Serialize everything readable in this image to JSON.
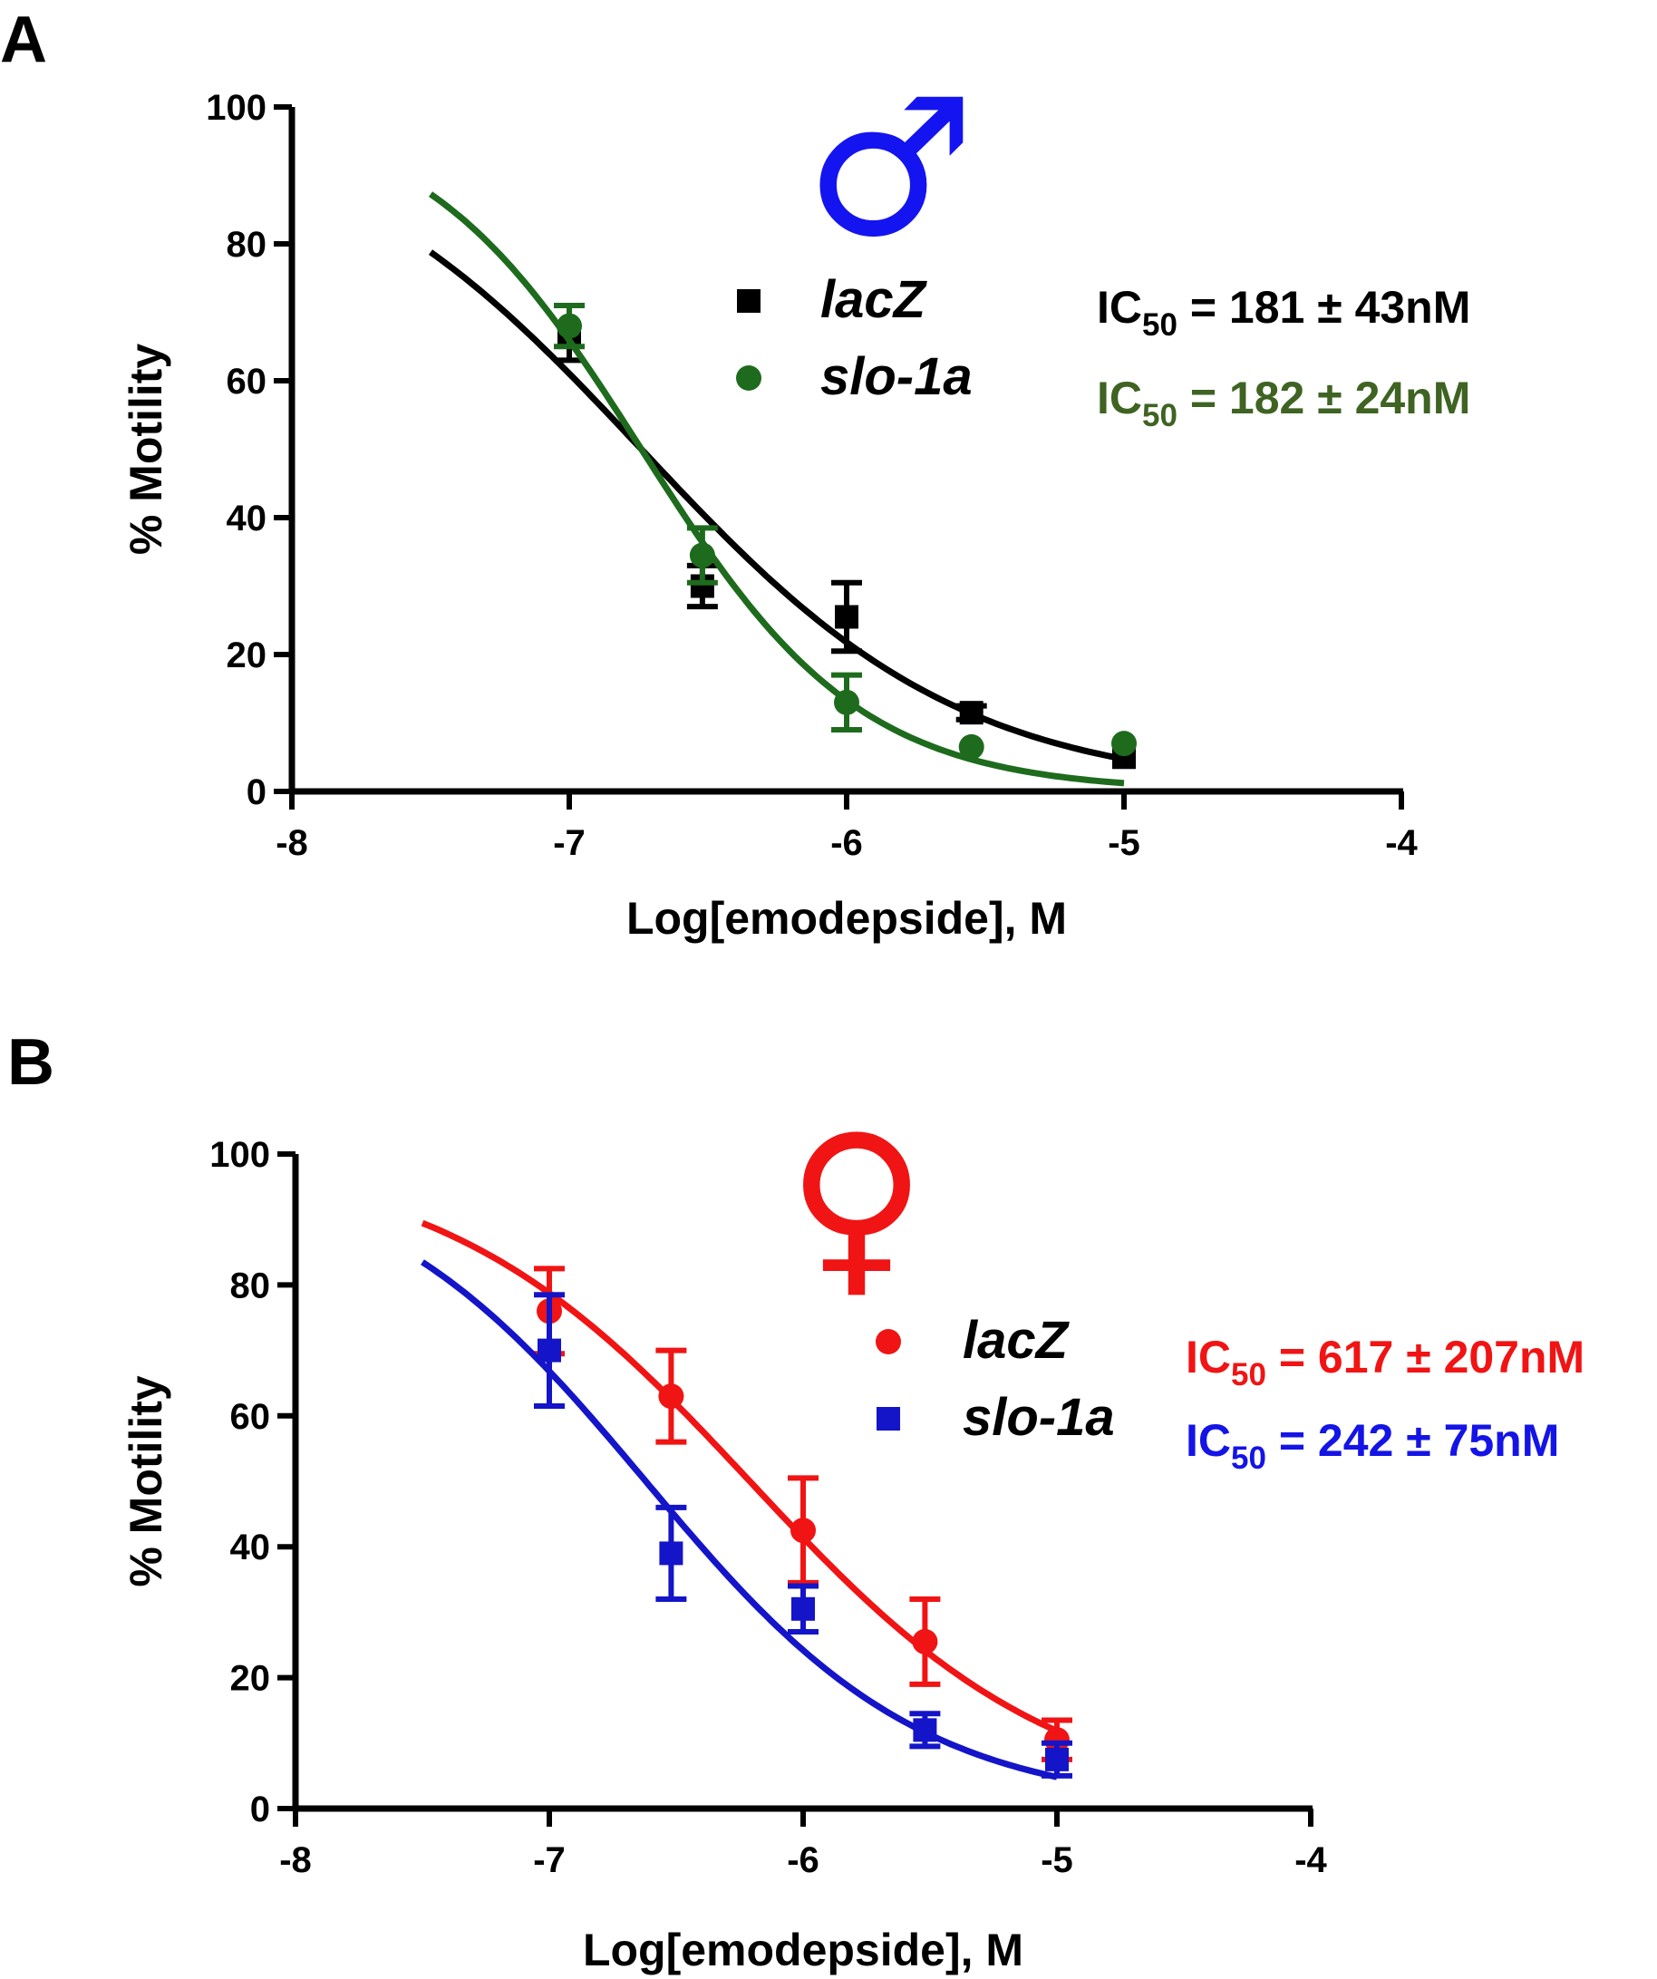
{
  "chart_data": [
    {
      "panel_label": "A",
      "type": "scatter",
      "symbol_glyph": "♂",
      "symbol_color": "#1414f0",
      "xlabel": "Log[emodepside], M",
      "ylabel": "% Motility",
      "xlim": [
        -8,
        -4
      ],
      "ylim": [
        0,
        100
      ],
      "xticks": [
        -8,
        -7,
        -6,
        -5,
        -4
      ],
      "yticks": [
        0,
        20,
        40,
        60,
        80,
        100
      ],
      "xtick_labels": [
        "-8",
        "-7",
        "-6",
        "-5",
        "-4"
      ],
      "ytick_labels": [
        "0",
        "20",
        "40",
        "60",
        "80",
        "100"
      ],
      "grid": false,
      "legend_position": "top-center",
      "series": [
        {
          "name": "lacZ",
          "marker": "square",
          "color": "#000000",
          "x": [
            -7.0,
            -6.52,
            -6.0,
            -5.55,
            -5.0
          ],
          "y": [
            67,
            30,
            25.5,
            11.5,
            5
          ],
          "error": [
            4,
            3,
            5,
            1,
            0
          ],
          "fit": {
            "top": 100,
            "bottom": 0,
            "logIC50": -6.74,
            "hill": 0.75,
            "x_range": [
              -7.5,
              -5.0
            ]
          },
          "ic50_label": "IC",
          "ic50_sub": "50",
          "ic50_value": " = 181 ± 43nM",
          "ic50_color": "#000000"
        },
        {
          "name": "slo-1a",
          "marker": "circle",
          "color": "#1e6b1e",
          "x": [
            -7.0,
            -6.52,
            -6.0,
            -5.55,
            -5.0
          ],
          "y": [
            68,
            34.5,
            13,
            6.5,
            7
          ],
          "error": [
            3,
            4,
            4,
            0,
            0
          ],
          "fit": {
            "top": 100,
            "bottom": 0,
            "logIC50": -6.74,
            "hill": 1.1,
            "x_range": [
              -7.5,
              -5.0
            ]
          },
          "ic50_label": "IC",
          "ic50_sub": "50",
          "ic50_value": " = 182 ± 24nM",
          "ic50_color": "#3f6322"
        }
      ]
    },
    {
      "panel_label": "B",
      "type": "scatter",
      "symbol_glyph": "♀",
      "symbol_color": "#f01414",
      "xlabel": "Log[emodepside], M",
      "ylabel": "% Motility",
      "xlim": [
        -8,
        -4
      ],
      "ylim": [
        0,
        100
      ],
      "xticks": [
        -8,
        -7,
        -6,
        -5,
        -4
      ],
      "yticks": [
        0,
        20,
        40,
        60,
        80,
        100
      ],
      "xtick_labels": [
        "-8",
        "-7",
        "-6",
        "-5",
        "-4"
      ],
      "ytick_labels": [
        "0",
        "20",
        "40",
        "60",
        "80",
        "100"
      ],
      "grid": false,
      "legend_position": "top-right",
      "series": [
        {
          "name": "lacZ",
          "marker": "circle",
          "color": "#f01414",
          "x": [
            -7.0,
            -6.52,
            -6.0,
            -5.52,
            -5.0
          ],
          "y": [
            76,
            63,
            42.5,
            25.5,
            10.5
          ],
          "error": [
            6.5,
            7,
            8,
            6.5,
            3
          ],
          "fit": {
            "top": 100,
            "bottom": 0,
            "logIC50": -6.21,
            "hill": 0.72,
            "x_range": [
              -7.5,
              -5.0
            ]
          },
          "ic50_label": "IC",
          "ic50_sub": "50",
          "ic50_value": " = 617 ± 207nM",
          "ic50_color": "#f01414"
        },
        {
          "name": "slo-1a",
          "marker": "square",
          "color": "#1414c8",
          "x": [
            -7.0,
            -6.52,
            -6.0,
            -5.52,
            -5.0
          ],
          "y": [
            70,
            39,
            30.5,
            12,
            7.5
          ],
          "error": [
            8.5,
            7,
            3.5,
            2.5,
            2.5
          ],
          "fit": {
            "top": 100,
            "bottom": 0,
            "logIC50": -6.62,
            "hill": 0.8,
            "x_range": [
              -7.5,
              -5.0
            ]
          },
          "ic50_label": "IC",
          "ic50_sub": "50",
          "ic50_value": " = 242 ± 75nM",
          "ic50_color": "#1414e6"
        }
      ]
    }
  ]
}
